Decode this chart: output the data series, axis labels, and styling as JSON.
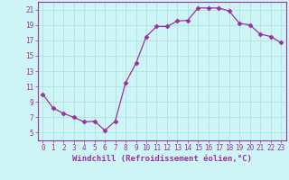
{
  "x": [
    0,
    1,
    2,
    3,
    4,
    5,
    6,
    7,
    8,
    9,
    10,
    11,
    12,
    13,
    14,
    15,
    16,
    17,
    18,
    19,
    20,
    21,
    22,
    23
  ],
  "y": [
    10.0,
    8.2,
    7.5,
    7.0,
    6.4,
    6.5,
    5.3,
    6.5,
    11.5,
    14.0,
    17.5,
    18.8,
    18.8,
    19.5,
    19.6,
    21.2,
    21.2,
    21.2,
    20.8,
    19.2,
    19.0,
    17.8,
    17.5,
    16.7
  ],
  "line_color": "#9B30A0",
  "marker": "D",
  "marker_size": 2.5,
  "bg_color": "#cef5f5",
  "grid_color": "#aadddd",
  "xlabel": "Windchill (Refroidissement éolien,°C)",
  "xlabel_fontsize": 6.5,
  "tick_fontsize": 5.5,
  "ylim": [
    4,
    22
  ],
  "yticks": [
    5,
    7,
    9,
    11,
    13,
    15,
    17,
    19,
    21
  ],
  "xlim": [
    -0.5,
    23.5
  ]
}
